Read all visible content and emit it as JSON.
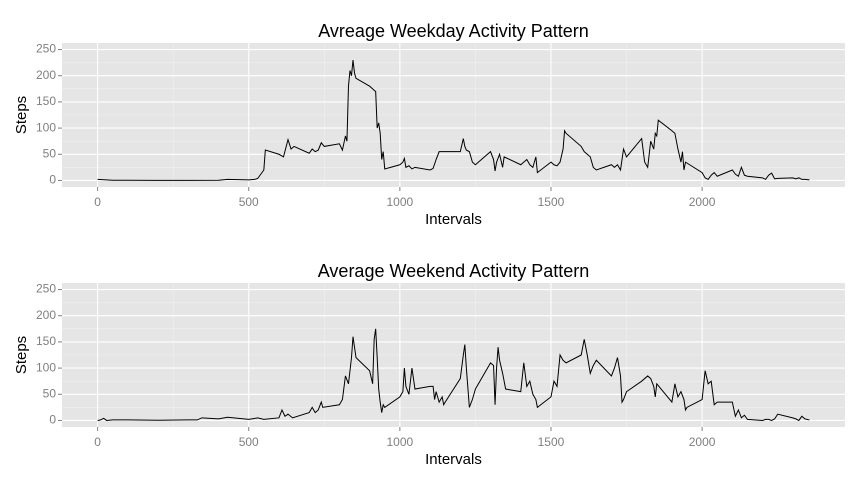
{
  "chart_data": [
    {
      "type": "line",
      "title": "Avreage Weekday Activity Pattern",
      "x_label": "Intervals",
      "y_label": "Steps",
      "x": [
        0,
        50,
        100,
        200,
        300,
        400,
        430,
        500,
        520,
        530,
        550,
        555,
        600,
        615,
        630,
        640,
        650,
        700,
        710,
        720,
        730,
        740,
        750,
        800,
        810,
        820,
        825,
        830,
        835,
        840,
        845,
        850,
        855,
        900,
        910,
        915,
        920,
        925,
        930,
        935,
        940,
        945,
        950,
        1000,
        1010,
        1015,
        1020,
        1030,
        1040,
        1050,
        1100,
        1110,
        1120,
        1130,
        1140,
        1150,
        1200,
        1210,
        1215,
        1220,
        1230,
        1240,
        1250,
        1300,
        1310,
        1315,
        1320,
        1330,
        1340,
        1345,
        1400,
        1410,
        1420,
        1430,
        1440,
        1450,
        1455,
        1500,
        1510,
        1520,
        1530,
        1540,
        1545,
        1550,
        1600,
        1610,
        1620,
        1630,
        1640,
        1650,
        1700,
        1710,
        1720,
        1730,
        1740,
        1750,
        1800,
        1810,
        1820,
        1830,
        1840,
        1845,
        1850,
        1855,
        1900,
        1910,
        1920,
        1930,
        1935,
        1940,
        1945,
        2000,
        2010,
        2020,
        2030,
        2040,
        2050,
        2100,
        2110,
        2120,
        2130,
        2140,
        2150,
        2200,
        2210,
        2220,
        2230,
        2240,
        2250,
        2300,
        2310,
        2320,
        2330,
        2340,
        2355
      ],
      "series": [
        {
          "color": "#000000",
          "values": [
            2,
            0.5,
            0.3,
            0.2,
            0.1,
            0.3,
            2,
            1,
            2,
            4,
            20,
            58,
            50,
            45,
            78,
            60,
            65,
            52,
            60,
            55,
            58,
            72,
            65,
            70,
            58,
            85,
            75,
            180,
            210,
            200,
            230,
            205,
            195,
            180,
            175,
            172,
            170,
            100,
            110,
            90,
            40,
            55,
            22,
            30,
            35,
            42,
            25,
            28,
            22,
            25,
            20,
            23,
            40,
            55,
            55,
            55,
            55,
            80,
            65,
            58,
            55,
            35,
            30,
            55,
            40,
            18,
            35,
            50,
            25,
            45,
            30,
            35,
            40,
            30,
            25,
            45,
            15,
            35,
            30,
            28,
            35,
            60,
            95,
            90,
            65,
            55,
            50,
            45,
            25,
            20,
            30,
            25,
            30,
            20,
            60,
            45,
            80,
            35,
            25,
            75,
            60,
            90,
            85,
            115,
            95,
            90,
            60,
            35,
            55,
            20,
            35,
            15,
            5,
            2,
            10,
            15,
            8,
            20,
            12,
            8,
            25,
            10,
            8,
            5,
            2,
            10,
            14,
            3,
            4,
            5,
            3,
            5,
            2,
            2,
            1
          ]
        }
      ],
      "xlim": [
        -117.75,
        2472.75
      ],
      "ylim": [
        -12.5,
        262.5
      ],
      "xticks": [
        0,
        500,
        1000,
        1500,
        2000
      ],
      "yticks": [
        0,
        50,
        100,
        150,
        200,
        250
      ],
      "grid": true
    },
    {
      "type": "line",
      "title": "Average Weekend Activity Pattern",
      "x_label": "Intervals",
      "y_label": "Steps",
      "x": [
        0,
        10,
        20,
        30,
        50,
        100,
        200,
        300,
        330,
        345,
        400,
        430,
        500,
        530,
        550,
        600,
        610,
        620,
        630,
        645,
        700,
        710,
        720,
        730,
        740,
        745,
        800,
        810,
        820,
        830,
        840,
        845,
        850,
        855,
        900,
        910,
        915,
        920,
        925,
        930,
        935,
        940,
        945,
        950,
        1000,
        1010,
        1015,
        1020,
        1030,
        1040,
        1050,
        1100,
        1110,
        1115,
        1120,
        1130,
        1140,
        1145,
        1150,
        1200,
        1210,
        1215,
        1220,
        1230,
        1240,
        1250,
        1300,
        1310,
        1315,
        1320,
        1325,
        1330,
        1340,
        1350,
        1400,
        1410,
        1420,
        1430,
        1440,
        1450,
        1455,
        1500,
        1510,
        1520,
        1530,
        1540,
        1550,
        1600,
        1610,
        1620,
        1630,
        1640,
        1650,
        1700,
        1710,
        1720,
        1730,
        1735,
        1740,
        1750,
        1800,
        1810,
        1820,
        1830,
        1840,
        1845,
        1850,
        1900,
        1910,
        1920,
        1930,
        1940,
        1945,
        1950,
        2000,
        2010,
        2020,
        2030,
        2040,
        2050,
        2100,
        2110,
        2120,
        2130,
        2140,
        2150,
        2200,
        2210,
        2220,
        2230,
        2240,
        2250,
        2300,
        2310,
        2320,
        2330,
        2340,
        2355
      ],
      "series": [
        {
          "color": "#000000",
          "values": [
            0,
            1,
            4,
            0,
            1,
            1,
            0.5,
            1,
            1,
            5,
            3,
            6,
            2,
            5,
            2,
            5,
            20,
            8,
            12,
            5,
            15,
            25,
            15,
            20,
            35,
            25,
            30,
            40,
            85,
            70,
            120,
            160,
            140,
            120,
            95,
            70,
            155,
            175,
            120,
            60,
            35,
            15,
            30,
            25,
            45,
            55,
            100,
            65,
            50,
            100,
            60,
            65,
            65,
            40,
            55,
            35,
            45,
            30,
            35,
            80,
            125,
            145,
            100,
            25,
            40,
            60,
            110,
            105,
            30,
            100,
            140,
            115,
            90,
            60,
            55,
            110,
            65,
            75,
            50,
            40,
            25,
            45,
            75,
            65,
            125,
            115,
            110,
            125,
            155,
            125,
            90,
            105,
            115,
            85,
            100,
            120,
            85,
            35,
            40,
            55,
            75,
            80,
            85,
            80,
            65,
            45,
            70,
            35,
            70,
            45,
            55,
            40,
            20,
            25,
            40,
            95,
            70,
            75,
            30,
            35,
            35,
            8,
            20,
            5,
            10,
            2,
            0,
            2,
            2,
            0,
            3,
            12,
            5,
            3,
            0,
            8,
            3,
            1
          ]
        }
      ],
      "xlim": [
        -117.75,
        2472.75
      ],
      "ylim": [
        -12.5,
        262.5
      ],
      "xticks": [
        0,
        500,
        1000,
        1500,
        2000
      ],
      "yticks": [
        0,
        50,
        100,
        150,
        200,
        250
      ],
      "grid": true
    }
  ]
}
